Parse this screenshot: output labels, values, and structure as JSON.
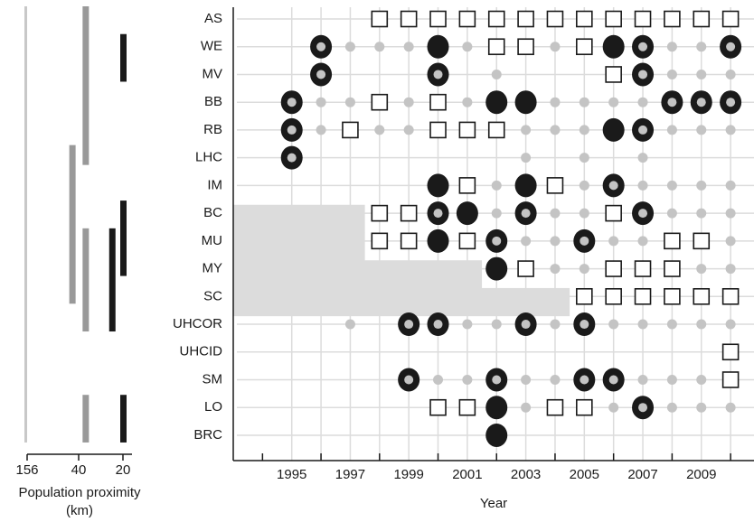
{
  "chart_data": {
    "type": "timeline-matrix",
    "x_label": "Year",
    "x": [
      1995,
      1996,
      1997,
      1998,
      1999,
      2000,
      2001,
      2002,
      2003,
      2004,
      2005,
      2006,
      2007,
      2008,
      2009,
      2010
    ],
    "xlim": [
      1993,
      2010.8
    ],
    "xticks": [
      1995,
      1997,
      1999,
      2001,
      2003,
      2005,
      2007,
      2009
    ],
    "xminorticks": [
      1994,
      1996,
      1998,
      2000,
      2002,
      2004,
      2006,
      2008,
      2010
    ],
    "grid": true,
    "rows": [
      {
        "label": "AS",
        "marks": [
          null,
          null,
          null,
          "square",
          "square",
          "square",
          "square",
          "square",
          "square",
          "square",
          "square",
          "square",
          "square",
          "square",
          "square",
          "square"
        ]
      },
      {
        "label": "WE",
        "marks": [
          null,
          "ring",
          "dot",
          "dot",
          "dot",
          "filled",
          "dot",
          "square",
          "square",
          "dot",
          "square",
          "filled",
          "ring",
          "dot",
          "dot",
          "ring"
        ]
      },
      {
        "label": "MV",
        "marks": [
          null,
          "ring",
          null,
          null,
          null,
          "ring",
          null,
          "dot",
          null,
          null,
          null,
          "square",
          "ring",
          "dot",
          "dot",
          "dot"
        ]
      },
      {
        "label": "BB",
        "marks": [
          "ring",
          "dot",
          "dot",
          "square",
          "dot",
          "square",
          "dot",
          "filled",
          "filled",
          "dot",
          "dot",
          "dot",
          "dot",
          "ring",
          "ring",
          "ring"
        ]
      },
      {
        "label": "RB",
        "marks": [
          "ring",
          "dot",
          "square",
          "dot",
          "dot",
          "square",
          "square",
          "square",
          "dot",
          "dot",
          "dot",
          "filled",
          "ring",
          "dot",
          "dot",
          "dot"
        ]
      },
      {
        "label": "LHC",
        "marks": [
          "ring",
          null,
          null,
          null,
          null,
          null,
          null,
          null,
          "dot",
          null,
          "dot",
          null,
          "dot",
          null,
          null,
          null
        ]
      },
      {
        "label": "IM",
        "marks": [
          null,
          null,
          null,
          null,
          null,
          "filled",
          "square",
          "dot",
          "filled",
          "square",
          "dot",
          "ring",
          "dot",
          "dot",
          "dot",
          "dot"
        ]
      },
      {
        "label": "BC",
        "marks": [
          null,
          null,
          null,
          "square",
          "square",
          "ring",
          "filled",
          "dot",
          "ring",
          "dot",
          "dot",
          "square",
          "ring",
          "dot",
          "dot",
          "dot"
        ],
        "shade_until": 1997.5
      },
      {
        "label": "MU",
        "marks": [
          null,
          null,
          null,
          "square",
          "square",
          "filled",
          "square",
          "ring",
          "dot",
          "dot",
          "ring",
          "dot",
          "dot",
          "square",
          "square",
          "dot"
        ],
        "shade_until": 1997.5
      },
      {
        "label": "MY",
        "marks": [
          null,
          null,
          null,
          null,
          null,
          null,
          null,
          "filled",
          "square",
          "dot",
          "dot",
          "square",
          "square",
          "square",
          "dot",
          "dot"
        ],
        "shade_until": 2001.5
      },
      {
        "label": "SC",
        "marks": [
          null,
          null,
          null,
          null,
          null,
          null,
          null,
          null,
          null,
          null,
          "square",
          "square",
          "square",
          "square",
          "square",
          "square"
        ],
        "shade_until": 2004.5
      },
      {
        "label": "UHCOR",
        "marks": [
          null,
          null,
          "dot",
          null,
          "ring",
          "ring",
          "dot",
          "dot",
          "ring",
          "dot",
          "ring",
          "dot",
          "dot",
          "dot",
          "dot",
          "dot"
        ]
      },
      {
        "label": "UHCID",
        "marks": [
          null,
          null,
          null,
          null,
          null,
          null,
          null,
          null,
          null,
          null,
          null,
          null,
          null,
          null,
          null,
          "square"
        ]
      },
      {
        "label": "SM",
        "marks": [
          null,
          null,
          null,
          null,
          "ring",
          "dot",
          "dot",
          "ring",
          "dot",
          "dot",
          "ring",
          "ring",
          "dot",
          "dot",
          "dot",
          "square"
        ]
      },
      {
        "label": "LO",
        "marks": [
          null,
          null,
          null,
          null,
          null,
          "square",
          "square",
          "filled",
          "dot",
          "square",
          "square",
          "dot",
          "ring",
          "dot",
          "dot",
          "dot"
        ]
      },
      {
        "label": "BRC",
        "marks": [
          null,
          null,
          null,
          null,
          null,
          null,
          null,
          "filled",
          null,
          null,
          null,
          null,
          null,
          null,
          null,
          null
        ]
      }
    ],
    "proximity": {
      "x_label": "Population proximity",
      "x_unit": "(km)",
      "xticks": [
        156,
        40,
        20
      ],
      "bars": [
        {
          "value": 156,
          "from": "AS",
          "to": "BRC",
          "color": "#c8c8c8"
        },
        {
          "value": 55,
          "from": "LHC",
          "to": "SC",
          "color": "#999999"
        },
        {
          "value": 37,
          "from": "AS",
          "to": "LHC",
          "color": "#999999"
        },
        {
          "value": 37,
          "from": "MU",
          "to": "UHCOR",
          "color": "#999999"
        },
        {
          "value": 37,
          "from": "LO",
          "to": "BRC",
          "color": "#999999"
        },
        {
          "value": 25,
          "from": "MU",
          "to": "UHCOR",
          "color": "#1a1a1a"
        },
        {
          "value": 20,
          "from": "WE",
          "to": "MV",
          "color": "#1a1a1a"
        },
        {
          "value": 20,
          "from": "BC",
          "to": "MY",
          "color": "#1a1a1a"
        },
        {
          "value": 20,
          "from": "LO",
          "to": "BRC",
          "color": "#1a1a1a"
        }
      ]
    }
  }
}
